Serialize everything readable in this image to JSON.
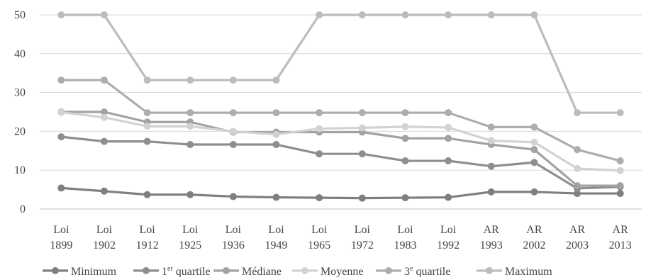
{
  "chart_data": {
    "type": "line",
    "title": "",
    "xlabel": "",
    "ylabel": "",
    "ylim": [
      0,
      50
    ],
    "yticks": [
      "0",
      "10",
      "20",
      "30",
      "40",
      "50"
    ],
    "grid": "horizontal",
    "legend_position": "bottom",
    "categories": [
      [
        "Loi",
        "1899"
      ],
      [
        "Loi",
        "1902"
      ],
      [
        "Loi",
        "1912"
      ],
      [
        "Loi",
        "1925"
      ],
      [
        "Loi",
        "1936"
      ],
      [
        "Loi",
        "1949"
      ],
      [
        "Loi",
        "1965"
      ],
      [
        "Loi",
        "1972"
      ],
      [
        "Loi",
        "1983"
      ],
      [
        "Loi",
        "1992"
      ],
      [
        "AR",
        "1993"
      ],
      [
        "AR",
        "2002"
      ],
      [
        "AR",
        "2003"
      ],
      [
        "AR",
        "2013"
      ]
    ],
    "series": [
      {
        "name": "Minimum",
        "color": "#7f7f7f",
        "values": [
          5.4,
          4.6,
          3.7,
          3.7,
          3.2,
          3.0,
          2.9,
          2.8,
          2.9,
          3.0,
          4.4,
          4.4,
          4.0,
          4.0
        ]
      },
      {
        "name": "1er quartile",
        "color": "#8e8e8e",
        "values": [
          18.6,
          17.4,
          17.4,
          16.6,
          16.6,
          16.6,
          14.2,
          14.2,
          12.4,
          12.4,
          11.0,
          12.0,
          5.3,
          5.7
        ]
      },
      {
        "name": "Médiane",
        "color": "#a2a2a2",
        "values": [
          25.0,
          25.0,
          22.4,
          22.4,
          19.8,
          19.8,
          19.8,
          19.8,
          18.2,
          18.2,
          16.6,
          15.3,
          6.0,
          6.0
        ]
      },
      {
        "name": "Moyenne",
        "color": "#d2d2d2",
        "values": [
          24.9,
          23.6,
          21.3,
          21.3,
          20.0,
          19.2,
          20.7,
          20.9,
          21.2,
          21.0,
          17.6,
          17.2,
          10.4,
          9.9
        ]
      },
      {
        "name": "3e quartile",
        "color": "#adadad",
        "values": [
          33.2,
          33.2,
          24.8,
          24.8,
          24.8,
          24.8,
          24.8,
          24.8,
          24.8,
          24.8,
          21.1,
          21.1,
          15.3,
          12.4
        ]
      },
      {
        "name": "Maximum",
        "color": "#bcbcbc",
        "values": [
          50,
          50,
          33.2,
          33.2,
          33.2,
          33.2,
          50,
          50,
          50,
          50,
          50,
          50,
          24.8,
          24.8
        ]
      }
    ],
    "legend_labels": [
      {
        "main": "Minimum",
        "sup": "",
        "rest": ""
      },
      {
        "main": "1",
        "sup": "er",
        "rest": " quartile"
      },
      {
        "main": "Médiane",
        "sup": "",
        "rest": ""
      },
      {
        "main": "Moyenne",
        "sup": "",
        "rest": ""
      },
      {
        "main": "3",
        "sup": "e",
        "rest": " quartile"
      },
      {
        "main": "Maximum",
        "sup": "",
        "rest": ""
      }
    ]
  }
}
